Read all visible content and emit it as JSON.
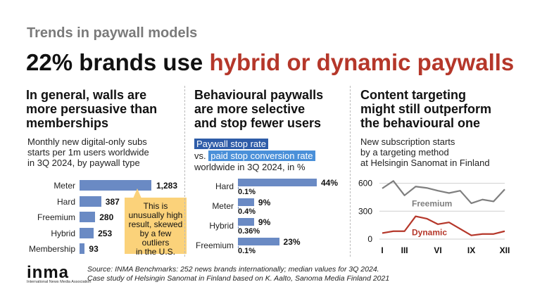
{
  "kicker": "Trends in paywall models",
  "headline": {
    "part1": "22% brands use ",
    "part2": "hybrid or dynamic paywalls"
  },
  "col1": {
    "heading": [
      "In general, walls are",
      "more persuasive than",
      "memberships"
    ],
    "subtitle": [
      "Monthly new digital-only subs",
      "starts per 1m users worldwide",
      "in 3Q 2024, by paywall type"
    ],
    "callout": [
      "This is",
      "unusually high",
      "result, skewed",
      "by a few",
      "outliers",
      "in the U.S."
    ]
  },
  "col2": {
    "heading": [
      "Behavioural paywalls",
      "are more selective",
      "and stop fewer users"
    ],
    "legend_stop": "Paywall stop rate",
    "legend_vs": "vs.",
    "legend_conv": "paid stop conversion rate",
    "subtitle": "worldwide in 3Q 2024, in %"
  },
  "col3": {
    "heading": [
      "Content targeting",
      "might still outperform",
      "the behavioural one"
    ],
    "subtitle": [
      "New subscription starts",
      "by a targeting method",
      "at Helsingin Sanomat in Finland"
    ]
  },
  "footer": {
    "line1": "Source: INMA Benchmarks: 252 news brands internationally; median values for 3Q 2024.",
    "line2": "Case study of Helsingin Sanomat in Finland based on K. Aalto, Sanoma Media Finland 2021"
  },
  "logo": {
    "text": "inma",
    "sub": "International News Media Association"
  },
  "colors": {
    "bar": "#6a8ac4",
    "freemium": "#7f7f7f",
    "dynamic": "#b5372a",
    "accent": "#b5372a"
  },
  "chart_data": [
    {
      "type": "bar",
      "orientation": "horizontal",
      "categories": [
        "Meter",
        "Hard",
        "Freemium",
        "Hybrid",
        "Membership"
      ],
      "values": [
        1283,
        387,
        280,
        253,
        93
      ],
      "value_labels": [
        "1,283",
        "387",
        "280",
        "253",
        "93"
      ]
    },
    {
      "type": "bar",
      "orientation": "horizontal",
      "categories": [
        "Hard",
        "Meter",
        "Hybrid",
        "Freemium"
      ],
      "series": [
        {
          "name": "Paywall stop rate",
          "values": [
            44,
            9,
            9,
            23
          ],
          "labels": [
            "44%",
            "9%",
            "9%",
            "23%"
          ]
        },
        {
          "name": "paid stop conversion rate",
          "values": [
            0.1,
            0.4,
            0.36,
            0.1
          ],
          "labels": [
            "0.1%",
            "0.4%",
            "0.36%",
            "0.1%"
          ]
        }
      ]
    },
    {
      "type": "line",
      "x": [
        "I",
        "II",
        "III",
        "IV",
        "V",
        "VI",
        "VII",
        "VIII",
        "IX",
        "X",
        "XI",
        "XII"
      ],
      "xticks": [
        "I",
        "III",
        "VI",
        "IX",
        "XII"
      ],
      "yticks": [
        "600",
        "300",
        "0"
      ],
      "ylim": [
        0,
        650
      ],
      "grid": true,
      "series": [
        {
          "name": "Freemium",
          "values": [
            545,
            625,
            470,
            565,
            550,
            520,
            495,
            520,
            385,
            425,
            405,
            535
          ]
        },
        {
          "name": "Dynamic",
          "values": [
            65,
            85,
            85,
            245,
            220,
            160,
            180,
            110,
            40,
            55,
            55,
            85
          ]
        }
      ]
    }
  ]
}
